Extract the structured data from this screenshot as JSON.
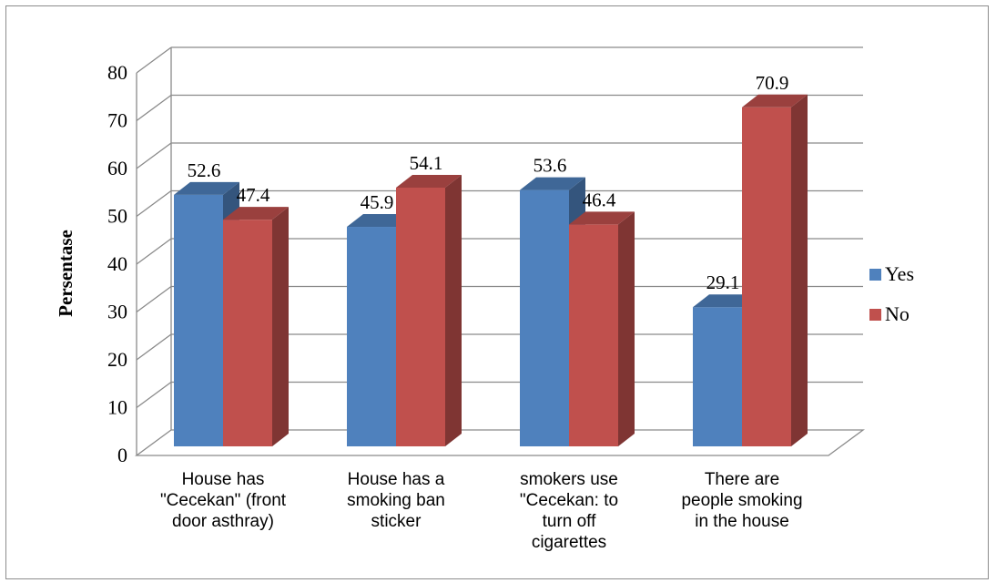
{
  "chart_data": {
    "type": "bar",
    "title": "",
    "xlabel": "",
    "ylabel": "Persentase",
    "ylim": [
      0,
      80
    ],
    "yticks": [
      0,
      10,
      20,
      30,
      40,
      50,
      60,
      70,
      80
    ],
    "categories": [
      [
        "House has",
        "\"Cecekan\" (front",
        "door asthray)"
      ],
      [
        "House has  a",
        "smoking ban",
        "sticker"
      ],
      [
        "smokers use",
        "\"Cecekan: to",
        "turn off",
        "cigarettes"
      ],
      [
        "There are",
        "people smoking",
        "in the house"
      ]
    ],
    "series": [
      {
        "name": "Yes",
        "values": [
          52.6,
          45.9,
          53.6,
          29.1
        ],
        "color": "#4f81bd"
      },
      {
        "name": "No",
        "values": [
          47.4,
          54.1,
          46.4,
          70.9
        ],
        "color": "#c0504d"
      }
    ],
    "legend": "right",
    "grid": true,
    "style": "3d-clustered-column"
  }
}
